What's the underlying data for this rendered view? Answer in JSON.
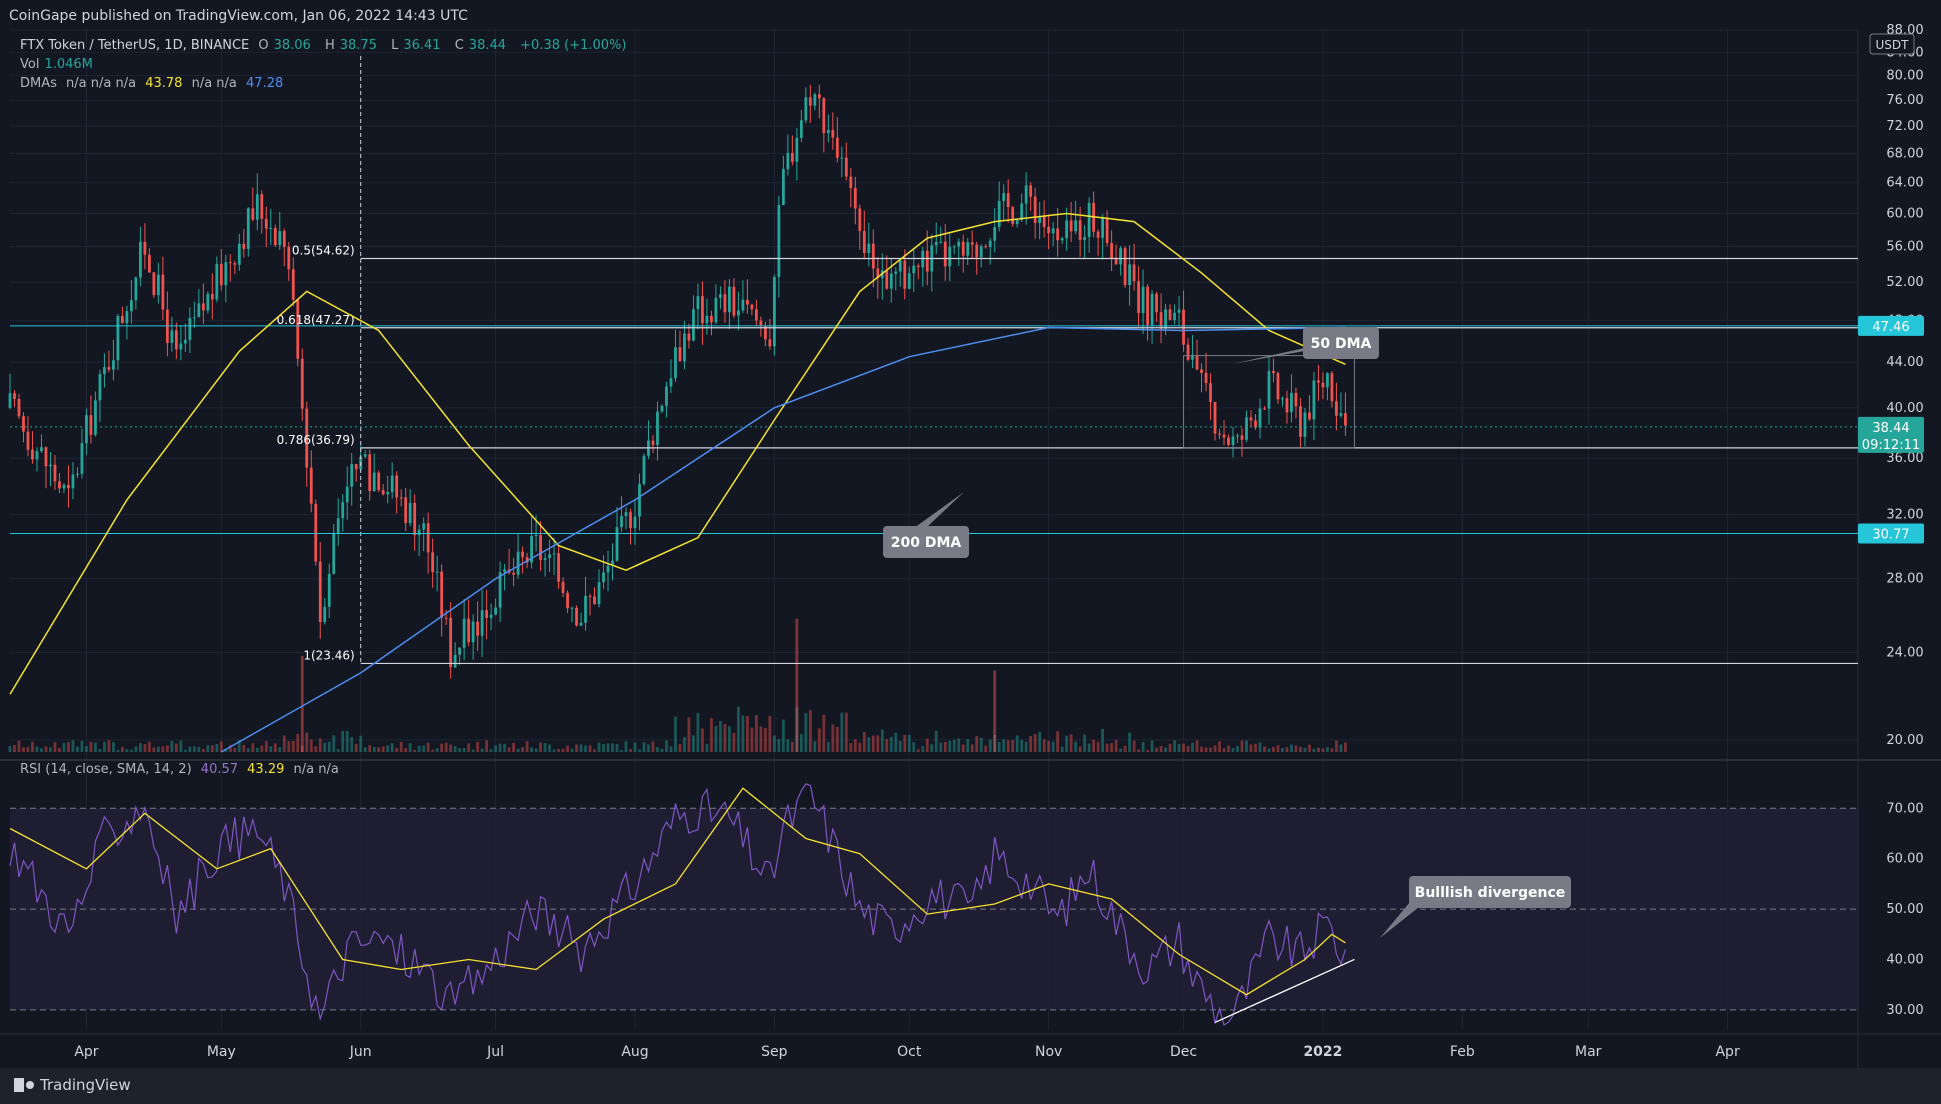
{
  "publisher": "CoinGape published on TradingView.com, Jan 06, 2022 14:43 UTC",
  "legend": {
    "symbol": "FTX Token / TetherUS, 1D, BINANCE",
    "o_label": "O",
    "o": "38.06",
    "h_label": "H",
    "h": "38.75",
    "l_label": "L",
    "l": "36.41",
    "c_label": "C",
    "c": "38.44",
    "change": "+0.38 (+1.00%)",
    "vol_label": "Vol",
    "vol": "1.046M",
    "dma_label": "DMAs",
    "dma_na": "n/a n/a n/a",
    "dma_50": "43.78",
    "dma_na2": "n/a n/a",
    "dma_200": "47.28",
    "rsi_label": "RSI (14, close, SMA, 14, 2)",
    "rsi": "40.57",
    "rsi_ma": "43.29",
    "rsi_na": "n/a n/a"
  },
  "footer": {
    "brand": "TradingView",
    "logo": "tradingview-logo-icon"
  },
  "currency": "USDT",
  "price_badges": {
    "fib_0618": "47.46",
    "last": "38.44",
    "countdown": "09:12:11",
    "support": "30.77"
  },
  "annotations": {
    "dma50": "50 DMA",
    "dma200": "200 DMA",
    "divergence": "Bulllish divergence"
  },
  "colors": {
    "background": "#131722",
    "up": "#26a69a",
    "down": "#ef5350",
    "dma50": "#f5e230",
    "dma200": "#4e8ef0",
    "rsi": "#7e57c2",
    "rsi_ma": "#f5e230",
    "cyan": "#26c6da"
  },
  "chart_data": [
    {
      "type": "candlestick",
      "title": "FTX Token / TetherUS, 1D, BINANCE",
      "y_scale": "log",
      "ylim": [
        19.5,
        88
      ],
      "yticks": [
        20,
        24,
        28,
        32,
        36,
        40,
        44,
        48,
        52,
        56,
        60,
        64,
        68,
        72,
        76,
        80,
        84,
        88
      ],
      "ytick_labels": [
        "20.00",
        "24.00",
        "28.00",
        "32.00",
        "36.00",
        "40.00",
        "44.00",
        "48.00",
        "52.00",
        "56.00",
        "60.00",
        "64.00",
        "68.00",
        "72.00",
        "76.00",
        "80.00",
        "84.00",
        "88.00"
      ],
      "x_start": "2021-03-15",
      "x_end": "2022-04-30",
      "xticks": [
        {
          "date": "2021-04-01",
          "label": "Apr"
        },
        {
          "date": "2021-05-01",
          "label": "May"
        },
        {
          "date": "2021-06-01",
          "label": "Jun"
        },
        {
          "date": "2021-07-01",
          "label": "Jul"
        },
        {
          "date": "2021-08-01",
          "label": "Aug"
        },
        {
          "date": "2021-09-01",
          "label": "Sep"
        },
        {
          "date": "2021-10-01",
          "label": "Oct"
        },
        {
          "date": "2021-11-01",
          "label": "Nov"
        },
        {
          "date": "2021-12-01",
          "label": "Dec"
        },
        {
          "date": "2022-01-01",
          "label": "2022"
        },
        {
          "date": "2022-02-01",
          "label": "Feb"
        },
        {
          "date": "2022-03-01",
          "label": "Mar"
        },
        {
          "date": "2022-04-01",
          "label": "Apr"
        }
      ],
      "price_path": [
        [
          "2021-03-15",
          40
        ],
        [
          "2021-03-28",
          33
        ],
        [
          "2021-04-05",
          43
        ],
        [
          "2021-04-14",
          56
        ],
        [
          "2021-04-21",
          44
        ],
        [
          "2021-04-30",
          52
        ],
        [
          "2021-05-09",
          61
        ],
        [
          "2021-05-15",
          57
        ],
        [
          "2021-05-19",
          40
        ],
        [
          "2021-05-23",
          26
        ],
        [
          "2021-05-29",
          35
        ],
        [
          "2021-06-05",
          35
        ],
        [
          "2021-06-15",
          31
        ],
        [
          "2021-06-21",
          24
        ],
        [
          "2021-06-28",
          26
        ],
        [
          "2021-07-10",
          30
        ],
        [
          "2021-07-20",
          26
        ],
        [
          "2021-07-25",
          28
        ],
        [
          "2021-08-01",
          33
        ],
        [
          "2021-08-10",
          45
        ],
        [
          "2021-08-15",
          49
        ],
        [
          "2021-08-22",
          50
        ],
        [
          "2021-08-31",
          47
        ],
        [
          "2021-09-03",
          65
        ],
        [
          "2021-09-09",
          78
        ],
        [
          "2021-09-14",
          71
        ],
        [
          "2021-09-20",
          56
        ],
        [
          "2021-09-27",
          52
        ],
        [
          "2021-10-06",
          55
        ],
        [
          "2021-10-15",
          55
        ],
        [
          "2021-10-20",
          60
        ],
        [
          "2021-10-28",
          62
        ],
        [
          "2021-11-03",
          56
        ],
        [
          "2021-11-10",
          60
        ],
        [
          "2021-11-17",
          54
        ],
        [
          "2021-11-23",
          49
        ],
        [
          "2021-11-30",
          48
        ],
        [
          "2021-12-03",
          43
        ],
        [
          "2021-12-10",
          38
        ],
        [
          "2021-12-13",
          37
        ],
        [
          "2021-12-20",
          42
        ],
        [
          "2021-12-27",
          39
        ],
        [
          "2022-01-02",
          43
        ],
        [
          "2022-01-06",
          38.44
        ]
      ],
      "volume_spikes": [
        [
          "2021-09-06",
          36
        ],
        [
          "2021-05-19",
          26
        ],
        [
          "2021-10-20",
          22
        ]
      ],
      "moving_averages": [
        {
          "name": "50 DMA",
          "points": [
            [
              "2021-03-15",
              22
            ],
            [
              "2021-04-10",
              33
            ],
            [
              "2021-05-05",
              45
            ],
            [
              "2021-05-20",
              51
            ],
            [
              "2021-06-05",
              47
            ],
            [
              "2021-06-25",
              37
            ],
            [
              "2021-07-15",
              30
            ],
            [
              "2021-07-30",
              28.5
            ],
            [
              "2021-08-15",
              30.5
            ],
            [
              "2021-09-01",
              39
            ],
            [
              "2021-09-20",
              51
            ],
            [
              "2021-10-05",
              57
            ],
            [
              "2021-10-20",
              59
            ],
            [
              "2021-11-05",
              60
            ],
            [
              "2021-11-20",
              59
            ],
            [
              "2021-12-05",
              53
            ],
            [
              "2021-12-20",
              47
            ],
            [
              "2022-01-06",
              43.8
            ]
          ]
        },
        {
          "name": "200 DMA",
          "points": [
            [
              "2021-05-01",
              19.5
            ],
            [
              "2021-06-01",
              23
            ],
            [
              "2021-07-01",
              28
            ],
            [
              "2021-08-01",
              33
            ],
            [
              "2021-09-01",
              40
            ],
            [
              "2021-10-01",
              44.5
            ],
            [
              "2021-11-01",
              47.3
            ],
            [
              "2021-12-01",
              47
            ],
            [
              "2022-01-06",
              47.3
            ]
          ]
        }
      ],
      "horizontal_levels": [
        {
          "label": "0.5(54.62)",
          "value": 54.62
        },
        {
          "label": "0.618(47.27)",
          "value": 47.27
        },
        {
          "label": "0.786(36.79)",
          "value": 36.79
        },
        {
          "label": "1(23.46)",
          "value": 23.46
        }
      ],
      "support_lines": [
        {
          "label": "30.77",
          "value": 30.77
        },
        {
          "label": "47.46",
          "value": 47.46
        }
      ],
      "last_price": 38.44
    },
    {
      "type": "line",
      "title": "RSI (14, close, SMA, 14, 2)",
      "ylim": [
        26,
        78
      ],
      "yticks": [
        30,
        40,
        50,
        60,
        70
      ],
      "ytick_labels": [
        "30.00",
        "40.00",
        "50.00",
        "60.00",
        "70.00"
      ],
      "bands": [
        30,
        50,
        70
      ],
      "series": [
        {
          "name": "RSI",
          "points": [
            [
              "2021-03-15",
              63
            ],
            [
              "2021-03-28",
              45
            ],
            [
              "2021-04-05",
              64
            ],
            [
              "2021-04-14",
              71
            ],
            [
              "2021-04-21",
              48
            ],
            [
              "2021-04-30",
              62
            ],
            [
              "2021-05-09",
              66
            ],
            [
              "2021-05-15",
              55
            ],
            [
              "2021-05-23",
              28
            ],
            [
              "2021-05-29",
              42
            ],
            [
              "2021-06-05",
              44
            ],
            [
              "2021-06-15",
              38
            ],
            [
              "2021-06-21",
              31
            ],
            [
              "2021-06-28",
              37
            ],
            [
              "2021-07-10",
              50
            ],
            [
              "2021-07-20",
              42
            ],
            [
              "2021-08-01",
              55
            ],
            [
              "2021-08-10",
              68
            ],
            [
              "2021-08-15",
              70
            ],
            [
              "2021-08-22",
              68
            ],
            [
              "2021-08-31",
              55
            ],
            [
              "2021-09-03",
              66
            ],
            [
              "2021-09-09",
              73
            ],
            [
              "2021-09-14",
              63
            ],
            [
              "2021-09-20",
              50
            ],
            [
              "2021-09-27",
              46
            ],
            [
              "2021-10-06",
              53
            ],
            [
              "2021-10-15",
              50
            ],
            [
              "2021-10-20",
              61
            ],
            [
              "2021-10-28",
              55
            ],
            [
              "2021-11-03",
              48
            ],
            [
              "2021-11-10",
              58
            ],
            [
              "2021-11-17",
              46
            ],
            [
              "2021-11-23",
              38
            ],
            [
              "2021-11-30",
              44
            ],
            [
              "2021-12-03",
              37
            ],
            [
              "2021-12-10",
              28
            ],
            [
              "2021-12-13",
              30
            ],
            [
              "2021-12-20",
              44
            ],
            [
              "2021-12-27",
              41
            ],
            [
              "2022-01-02",
              47
            ],
            [
              "2022-01-06",
              40.57
            ]
          ]
        },
        {
          "name": "RSI MA",
          "points": [
            [
              "2021-03-15",
              66
            ],
            [
              "2021-04-01",
              58
            ],
            [
              "2021-04-14",
              69
            ],
            [
              "2021-04-30",
              58
            ],
            [
              "2021-05-12",
              62
            ],
            [
              "2021-05-28",
              40
            ],
            [
              "2021-06-10",
              38
            ],
            [
              "2021-06-25",
              40
            ],
            [
              "2021-07-10",
              38
            ],
            [
              "2021-07-25",
              48
            ],
            [
              "2021-08-10",
              55
            ],
            [
              "2021-08-25",
              74
            ],
            [
              "2021-09-08",
              64
            ],
            [
              "2021-09-20",
              61
            ],
            [
              "2021-10-05",
              49
            ],
            [
              "2021-10-20",
              51
            ],
            [
              "2021-11-01",
              55
            ],
            [
              "2021-11-15",
              52
            ],
            [
              "2021-11-30",
              41
            ],
            [
              "2021-12-15",
              33
            ],
            [
              "2021-12-28",
              40
            ],
            [
              "2022-01-03",
              45
            ],
            [
              "2022-01-06",
              43.3
            ]
          ]
        }
      ],
      "trendline": [
        [
          "2021-12-08",
          27.5
        ],
        [
          "2022-01-08",
          40
        ]
      ]
    }
  ]
}
